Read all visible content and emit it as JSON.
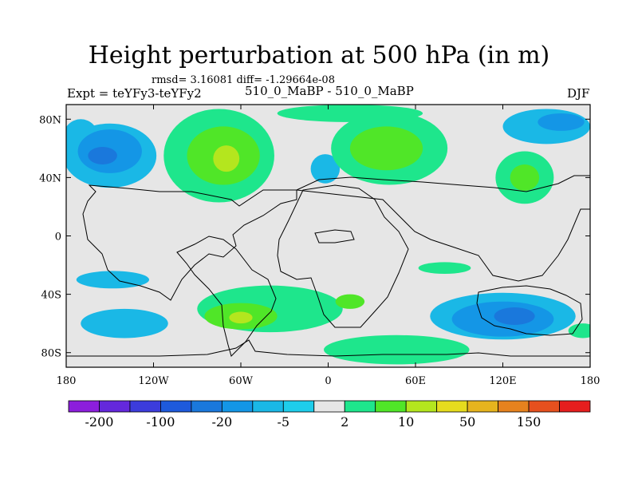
{
  "title": "Height perturbation at 500 hPa (in m)",
  "stats": "rmsd= 3.16081 diff= -1.29664e-08",
  "experiment_label": "Expt = teYFy3-teYFy2",
  "cases_label": "510_0_MaBP - 510_0_MaBP",
  "season": "DJF",
  "colors": {
    "background": "#e6e6e6",
    "coast": "#000000",
    "n_cyan": "#1ab8e6",
    "n_blue": "#1496e6",
    "n_deep": "#1a78dc",
    "p_green": "#1ee68c",
    "p_lgreen": "#50e628",
    "p_yellow": "#b4e61e"
  },
  "chart_data": {
    "type": "map-contour",
    "projection": "cylindrical-equidistant",
    "lon_range": [
      -180,
      180
    ],
    "lat_range": [
      -90,
      90
    ],
    "x_ticks": [
      {
        "lon": -180,
        "label": "180"
      },
      {
        "lon": -120,
        "label": "120W"
      },
      {
        "lon": -60,
        "label": "60W"
      },
      {
        "lon": 0,
        "label": "0"
      },
      {
        "lon": 60,
        "label": "60E"
      },
      {
        "lon": 120,
        "label": "120E"
      },
      {
        "lon": 180,
        "label": "180"
      }
    ],
    "y_ticks": [
      {
        "lat": 80,
        "label": "80N"
      },
      {
        "lat": 40,
        "label": "40N"
      },
      {
        "lat": 0,
        "label": "0"
      },
      {
        "lat": -40,
        "label": "40S"
      },
      {
        "lat": -80,
        "label": "80S"
      }
    ],
    "colorbar": {
      "colors": [
        "#8c1edc",
        "#6428dc",
        "#3c3cdc",
        "#1e5adc",
        "#1a78dc",
        "#1496e6",
        "#1ab8e6",
        "#1ecdeb",
        "#e6e6e6",
        "#1ee68c",
        "#50e628",
        "#b4e61e",
        "#e6dc1e",
        "#e6b41e",
        "#e6821e",
        "#e6501e",
        "#e61e1e"
      ],
      "labels": [
        {
          "after_box": 1,
          "text": "-200"
        },
        {
          "after_box": 3,
          "text": "-100"
        },
        {
          "after_box": 5,
          "text": "-20"
        },
        {
          "after_box": 7,
          "text": "-5"
        },
        {
          "after_box": 9,
          "text": "2"
        },
        {
          "after_box": 11,
          "text": "10"
        },
        {
          "after_box": 13,
          "text": "50"
        },
        {
          "after_box": 15,
          "text": "150"
        }
      ]
    },
    "anomalies": [
      {
        "level": "n_cyan",
        "lon": -150,
        "lat": 55,
        "rx": 32,
        "ry": 22
      },
      {
        "level": "n_cyan",
        "lon": -170,
        "lat": 68,
        "rx": 12,
        "ry": 12
      },
      {
        "level": "n_blue",
        "lon": -150,
        "lat": 58,
        "rx": 22,
        "ry": 15
      },
      {
        "level": "n_deep",
        "lon": -155,
        "lat": 55,
        "rx": 10,
        "ry": 6
      },
      {
        "level": "n_cyan",
        "lon": 150,
        "lat": 75,
        "rx": 30,
        "ry": 12
      },
      {
        "level": "n_blue",
        "lon": 160,
        "lat": 78,
        "rx": 16,
        "ry": 6
      },
      {
        "level": "n_cyan",
        "lon": -2,
        "lat": 46,
        "rx": 10,
        "ry": 10
      },
      {
        "level": "n_cyan",
        "lon": -140,
        "lat": -60,
        "rx": 30,
        "ry": 10
      },
      {
        "level": "n_cyan",
        "lon": 120,
        "lat": -55,
        "rx": 50,
        "ry": 16
      },
      {
        "level": "n_blue",
        "lon": 120,
        "lat": -57,
        "rx": 35,
        "ry": 12
      },
      {
        "level": "n_deep",
        "lon": 128,
        "lat": -55,
        "rx": 14,
        "ry": 6
      },
      {
        "level": "n_cyan",
        "lon": -148,
        "lat": -30,
        "rx": 25,
        "ry": 6
      },
      {
        "level": "p_green",
        "lon": -75,
        "lat": 55,
        "rx": 38,
        "ry": 32
      },
      {
        "level": "p_green",
        "lon": 42,
        "lat": 60,
        "rx": 40,
        "ry": 25
      },
      {
        "level": "p_green",
        "lon": 15,
        "lat": 84,
        "rx": 50,
        "ry": 6
      },
      {
        "level": "p_lgreen",
        "lon": -72,
        "lat": 55,
        "rx": 25,
        "ry": 20
      },
      {
        "level": "p_lgreen",
        "lon": 40,
        "lat": 60,
        "rx": 25,
        "ry": 15
      },
      {
        "level": "p_yellow",
        "lon": -70,
        "lat": 53,
        "rx": 9,
        "ry": 9
      },
      {
        "level": "p_green",
        "lon": 135,
        "lat": 40,
        "rx": 20,
        "ry": 18
      },
      {
        "level": "p_lgreen",
        "lon": 135,
        "lat": 40,
        "rx": 10,
        "ry": 9
      },
      {
        "level": "p_green",
        "lon": -40,
        "lat": -50,
        "rx": 50,
        "ry": 16
      },
      {
        "level": "p_lgreen",
        "lon": -60,
        "lat": -55,
        "rx": 25,
        "ry": 9
      },
      {
        "level": "p_lgreen",
        "lon": 15,
        "lat": -45,
        "rx": 10,
        "ry": 5
      },
      {
        "level": "p_yellow",
        "lon": -60,
        "lat": -56,
        "rx": 8,
        "ry": 4
      },
      {
        "level": "p_green",
        "lon": 47,
        "lat": -78,
        "rx": 50,
        "ry": 10
      },
      {
        "level": "p_green",
        "lon": 80,
        "lat": -22,
        "rx": 18,
        "ry": 4
      },
      {
        "level": "p_green",
        "lon": 175,
        "lat": -65,
        "rx": 10,
        "ry": 5
      }
    ]
  }
}
